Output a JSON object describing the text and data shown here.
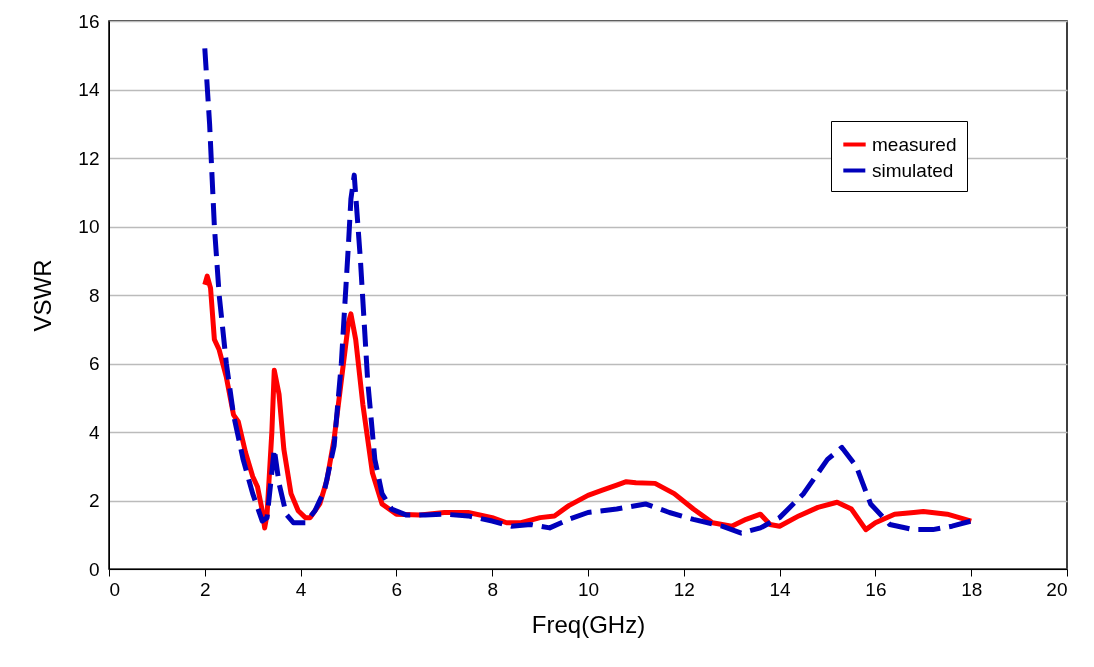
{
  "chart_data": {
    "type": "line",
    "xlabel": "Freq(GHz)",
    "ylabel": "VSWR",
    "xlim": [
      0,
      20
    ],
    "xticks": [
      0,
      2,
      4,
      6,
      8,
      10,
      12,
      14,
      16,
      18,
      20
    ],
    "ylim": [
      0,
      16
    ],
    "yticks": [
      0,
      2,
      4,
      6,
      8,
      10,
      12,
      14,
      16
    ],
    "grid": "y",
    "legend": "top right",
    "marker": "none",
    "series": [
      {
        "name": "measured",
        "color": "#ff0000",
        "line_style": "solid",
        "x": [
          2.0,
          2.05,
          2.12,
          2.2,
          2.3,
          2.45,
          2.6,
          2.7,
          2.85,
          3.0,
          3.1,
          3.2,
          3.25,
          3.3,
          3.4,
          3.45,
          3.55,
          3.65,
          3.8,
          3.95,
          4.1,
          4.2,
          4.4,
          4.55,
          4.7,
          4.85,
          5.0,
          5.05,
          5.15,
          5.3,
          5.5,
          5.7,
          6.0,
          6.5,
          7.0,
          7.5,
          8.0,
          8.3,
          8.6,
          9.0,
          9.3,
          9.6,
          10.0,
          10.3,
          10.6,
          10.8,
          11.0,
          11.4,
          11.8,
          12.2,
          12.6,
          13.0,
          13.3,
          13.6,
          13.8,
          14.0,
          14.4,
          14.8,
          15.2,
          15.5,
          15.8,
          16.0,
          16.4,
          16.8,
          17.0,
          17.5,
          18.0
        ],
        "values": [
          8.3,
          8.55,
          8.2,
          6.7,
          6.4,
          5.6,
          4.5,
          4.3,
          3.4,
          2.7,
          2.4,
          1.7,
          1.2,
          1.6,
          4.0,
          5.8,
          5.1,
          3.5,
          2.2,
          1.7,
          1.5,
          1.5,
          1.9,
          2.6,
          3.8,
          5.5,
          7.2,
          7.45,
          6.7,
          4.8,
          2.8,
          1.9,
          1.6,
          1.58,
          1.65,
          1.65,
          1.5,
          1.35,
          1.35,
          1.5,
          1.55,
          1.85,
          2.15,
          2.3,
          2.45,
          2.55,
          2.52,
          2.5,
          2.2,
          1.75,
          1.35,
          1.25,
          1.45,
          1.6,
          1.3,
          1.25,
          1.55,
          1.8,
          1.95,
          1.75,
          1.15,
          1.35,
          1.6,
          1.65,
          1.68,
          1.6,
          1.4
        ]
      },
      {
        "name": "simulated",
        "color": "#0000bb",
        "line_style": "dashed",
        "x": [
          2.0,
          2.1,
          2.2,
          2.3,
          2.45,
          2.6,
          2.8,
          3.0,
          3.2,
          3.3,
          3.45,
          3.55,
          3.7,
          3.85,
          4.1,
          4.3,
          4.5,
          4.7,
          4.85,
          5.0,
          5.05,
          5.12,
          5.25,
          5.4,
          5.55,
          5.7,
          5.9,
          6.2,
          6.6,
          7.0,
          7.5,
          8.0,
          8.4,
          8.8,
          9.2,
          9.6,
          10.0,
          10.6,
          11.2,
          11.7,
          12.2,
          12.8,
          13.2,
          13.6,
          14.0,
          14.5,
          15.0,
          15.3,
          15.6,
          15.9,
          16.3,
          16.8,
          17.2,
          17.6,
          18.0
        ],
        "values": [
          15.2,
          13,
          10,
          8,
          6,
          4.5,
          3.2,
          2.2,
          1.4,
          1.5,
          3.5,
          2.5,
          1.6,
          1.35,
          1.35,
          1.7,
          2.3,
          3.6,
          6,
          9.5,
          10.8,
          11.5,
          9,
          5.5,
          3.2,
          2.2,
          1.75,
          1.58,
          1.58,
          1.6,
          1.55,
          1.4,
          1.25,
          1.3,
          1.2,
          1.45,
          1.65,
          1.75,
          1.9,
          1.65,
          1.45,
          1.25,
          1.05,
          1.2,
          1.5,
          2.2,
          3.2,
          3.55,
          3.0,
          1.9,
          1.3,
          1.15,
          1.15,
          1.25,
          1.4
        ]
      }
    ]
  }
}
